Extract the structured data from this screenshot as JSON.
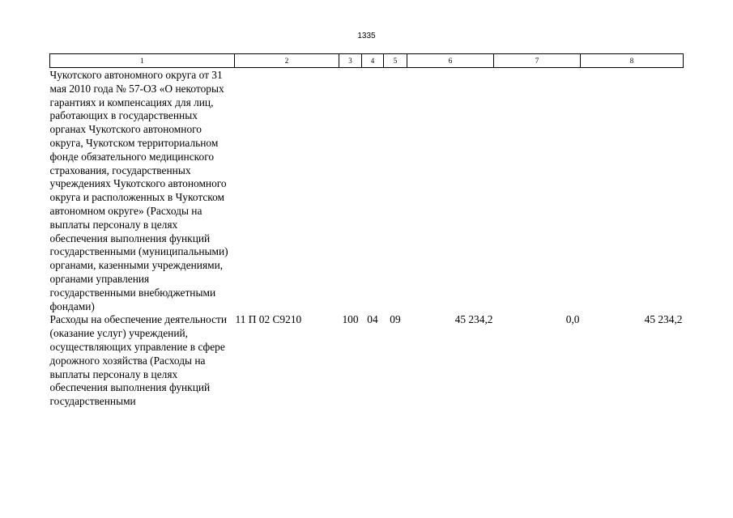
{
  "page_number": "1335",
  "table": {
    "headers": [
      "1",
      "2",
      "3",
      "4",
      "5",
      "6",
      "7",
      "8"
    ],
    "rows": [
      {
        "name": "Чукотского автономного округа от 31 мая 2010 года № 57-ОЗ «О некоторых гарантиях и компенсациях для лиц, работающих в государственных органах Чукотского автономного округа, Чукотском территориальном фонде обязательного медицинского страхования, государственных учреждениях Чукотского автономного округа и расположенных в Чукотском автономном округе» (Расходы на выплаты персоналу в целях обеспечения выполнения функций государственными (муниципальными) органами, казенными учреждениями, органами управления государственными внебюджетными фондами)",
        "code": "",
        "c3": "",
        "c4": "",
        "c5": "",
        "c6": "",
        "c7": "",
        "c8": ""
      },
      {
        "name": "Расходы на обеспечение деятельности (оказание услуг) учреждений, осуществляющих управление в сфере дорожного хозяйства (Расходы на выплаты персоналу в целях обеспечения выполнения функций государственными",
        "code": "11 П 02 С9210",
        "c3": "100",
        "c4": "04",
        "c5": "09",
        "c6": "45 234,2",
        "c7": "0,0",
        "c8": "45 234,2"
      }
    ]
  }
}
